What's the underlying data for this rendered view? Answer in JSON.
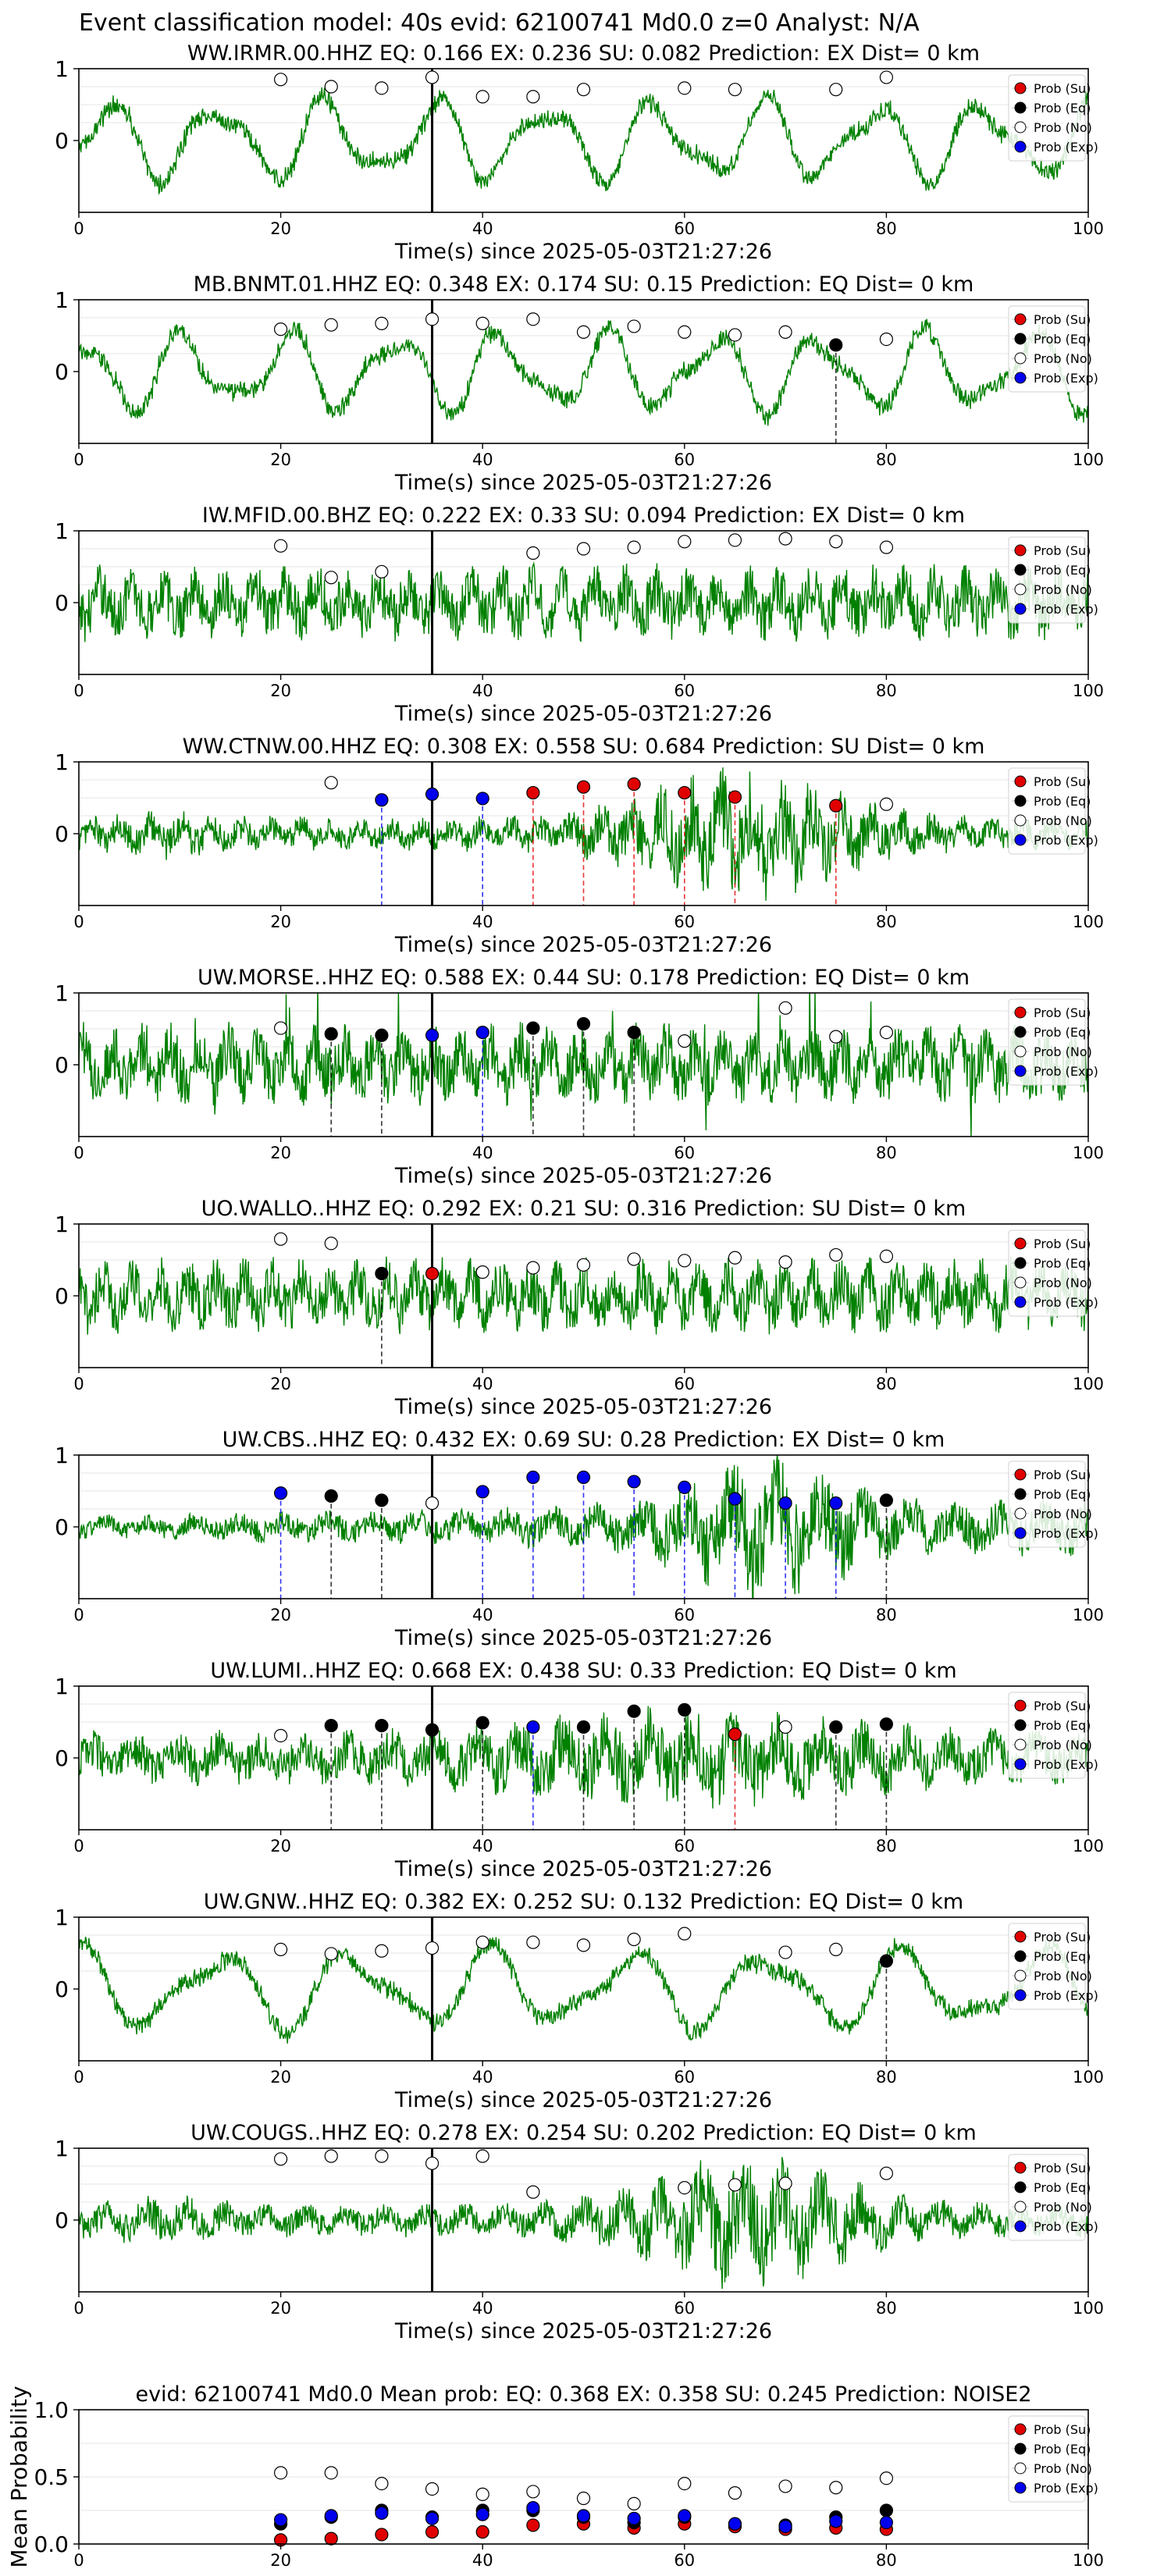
{
  "figure_title": "Event classification model: 40s evid: 62100741 Md0.0 z=0 Analyst: N/A",
  "colors": {
    "waveform": "#008000",
    "su": "#e00000",
    "eq": "#000000",
    "no": "#ffffff",
    "exp": "#0000ee",
    "pick": "#000000"
  },
  "legend": [
    "Prob (Su)",
    "Prob (Eq)",
    "Prob (No)",
    "Prob (Exp)"
  ],
  "chart_data": [
    {
      "type": "line",
      "title": "WW.IRMR.00.HHZ   EQ: 0.166  EX: 0.236  SU: 0.082   Prediction: EX    Dist= 0 km",
      "xlabel": "Time(s) since 2025-05-03T21:27:26",
      "xlim": [
        0,
        100
      ],
      "ylim": [
        -1,
        1
      ],
      "xticks": [
        0,
        20,
        40,
        60,
        80,
        100
      ],
      "yticks": [
        1,
        0
      ],
      "pick_time": 35,
      "waveform_style": "rs",
      "points": [
        {
          "t": 20,
          "p": 0.85,
          "c": "no"
        },
        {
          "t": 25,
          "p": 0.75,
          "c": "no"
        },
        {
          "t": 30,
          "p": 0.73,
          "c": "no"
        },
        {
          "t": 35,
          "p": 0.88,
          "c": "no"
        },
        {
          "t": 40,
          "p": 0.61,
          "c": "no"
        },
        {
          "t": 45,
          "p": 0.61,
          "c": "no"
        },
        {
          "t": 50,
          "p": 0.71,
          "c": "no"
        },
        {
          "t": 60,
          "p": 0.73,
          "c": "no"
        },
        {
          "t": 65,
          "p": 0.71,
          "c": "no"
        },
        {
          "t": 75,
          "p": 0.71,
          "c": "no"
        },
        {
          "t": 80,
          "p": 0.88,
          "c": "no"
        }
      ]
    },
    {
      "type": "line",
      "title": "MB.BNMT.01.HHZ   EQ: 0.348  EX: 0.174  SU: 0.15   Prediction: EQ    Dist= 0 km",
      "xlabel": "Time(s) since 2025-05-03T21:27:26",
      "xlim": [
        0,
        100
      ],
      "ylim": [
        -1,
        1
      ],
      "xticks": [
        0,
        20,
        40,
        60,
        80,
        100
      ],
      "yticks": [
        1,
        0
      ],
      "pick_time": 35,
      "waveform_style": "rs",
      "points": [
        {
          "t": 20,
          "p": 0.59,
          "c": "no"
        },
        {
          "t": 25,
          "p": 0.65,
          "c": "no"
        },
        {
          "t": 30,
          "p": 0.67,
          "c": "no"
        },
        {
          "t": 35,
          "p": 0.73,
          "c": "no"
        },
        {
          "t": 40,
          "p": 0.67,
          "c": "no"
        },
        {
          "t": 45,
          "p": 0.73,
          "c": "no"
        },
        {
          "t": 50,
          "p": 0.55,
          "c": "no"
        },
        {
          "t": 55,
          "p": 0.63,
          "c": "no"
        },
        {
          "t": 60,
          "p": 0.55,
          "c": "no"
        },
        {
          "t": 65,
          "p": 0.51,
          "c": "no"
        },
        {
          "t": 70,
          "p": 0.55,
          "c": "no"
        },
        {
          "t": 75,
          "p": 0.37,
          "c": "eq"
        },
        {
          "t": 80,
          "p": 0.45,
          "c": "no"
        }
      ]
    },
    {
      "type": "line",
      "title": "IW.MFID.00.BHZ   EQ: 0.222  EX: 0.33  SU: 0.094   Prediction: EX    Dist= 0 km",
      "xlabel": "Time(s) since 2025-05-03T21:27:26",
      "xlim": [
        0,
        100
      ],
      "ylim": [
        -1,
        1
      ],
      "xticks": [
        0,
        20,
        40,
        60,
        80,
        100
      ],
      "yticks": [
        1,
        0
      ],
      "pick_time": 35,
      "waveform_style": "bb",
      "points": [
        {
          "t": 20,
          "p": 0.79,
          "c": "no"
        },
        {
          "t": 25,
          "p": 0.35,
          "c": "no"
        },
        {
          "t": 30,
          "p": 0.43,
          "c": "no"
        },
        {
          "t": 45,
          "p": 0.69,
          "c": "no"
        },
        {
          "t": 50,
          "p": 0.75,
          "c": "no"
        },
        {
          "t": 55,
          "p": 0.77,
          "c": "no"
        },
        {
          "t": 60,
          "p": 0.85,
          "c": "no"
        },
        {
          "t": 65,
          "p": 0.87,
          "c": "no"
        },
        {
          "t": 70,
          "p": 0.89,
          "c": "no"
        },
        {
          "t": 75,
          "p": 0.85,
          "c": "no"
        },
        {
          "t": 80,
          "p": 0.77,
          "c": "no"
        }
      ]
    },
    {
      "type": "line",
      "title": "WW.CTNW.00.HHZ   EQ: 0.308  EX: 0.558  SU: 0.684   Prediction: SU    Dist= 0 km",
      "xlabel": "Time(s) since 2025-05-03T21:27:26",
      "xlim": [
        0,
        100
      ],
      "ylim": [
        -1,
        1
      ],
      "xticks": [
        0,
        20,
        40,
        60,
        80,
        100
      ],
      "yticks": [
        1,
        0
      ],
      "pick_time": 35,
      "waveform_style": "burst",
      "points": [
        {
          "t": 25,
          "p": 0.71,
          "c": "no"
        },
        {
          "t": 30,
          "p": 0.47,
          "c": "exp"
        },
        {
          "t": 35,
          "p": 0.55,
          "c": "exp"
        },
        {
          "t": 40,
          "p": 0.49,
          "c": "exp"
        },
        {
          "t": 45,
          "p": 0.57,
          "c": "su"
        },
        {
          "t": 50,
          "p": 0.65,
          "c": "su"
        },
        {
          "t": 55,
          "p": 0.69,
          "c": "su"
        },
        {
          "t": 60,
          "p": 0.57,
          "c": "su"
        },
        {
          "t": 65,
          "p": 0.51,
          "c": "su"
        },
        {
          "t": 75,
          "p": 0.39,
          "c": "su"
        },
        {
          "t": 80,
          "p": 0.41,
          "c": "no"
        }
      ]
    },
    {
      "type": "line",
      "title": "UW.MORSE..HHZ   EQ: 0.588  EX: 0.44  SU: 0.178   Prediction: EQ    Dist= 0 km",
      "xlabel": "Time(s) since 2025-05-03T21:27:26",
      "xlim": [
        0,
        100
      ],
      "ylim": [
        -1,
        1
      ],
      "xticks": [
        0,
        20,
        40,
        60,
        80,
        100
      ],
      "yticks": [
        1,
        0
      ],
      "pick_time": 35,
      "waveform_style": "spiky",
      "points": [
        {
          "t": 20,
          "p": 0.51,
          "c": "no"
        },
        {
          "t": 25,
          "p": 0.43,
          "c": "eq"
        },
        {
          "t": 30,
          "p": 0.41,
          "c": "eq"
        },
        {
          "t": 35,
          "p": 0.41,
          "c": "exp"
        },
        {
          "t": 40,
          "p": 0.45,
          "c": "exp"
        },
        {
          "t": 45,
          "p": 0.51,
          "c": "eq"
        },
        {
          "t": 50,
          "p": 0.57,
          "c": "eq"
        },
        {
          "t": 55,
          "p": 0.45,
          "c": "eq"
        },
        {
          "t": 60,
          "p": 0.33,
          "c": "no"
        },
        {
          "t": 70,
          "p": 0.79,
          "c": "no"
        },
        {
          "t": 75,
          "p": 0.39,
          "c": "no"
        },
        {
          "t": 80,
          "p": 0.45,
          "c": "no"
        }
      ]
    },
    {
      "type": "line",
      "title": "UO.WALLO..HHZ   EQ: 0.292  EX: 0.21  SU: 0.316   Prediction: SU    Dist= 0 km",
      "xlabel": "Time(s) since 2025-05-03T21:27:26",
      "xlim": [
        0,
        100
      ],
      "ylim": [
        -1,
        1
      ],
      "xticks": [
        0,
        20,
        40,
        60,
        80,
        100
      ],
      "yticks": [
        1,
        0
      ],
      "pick_time": 35,
      "waveform_style": "bb",
      "points": [
        {
          "t": 20,
          "p": 0.79,
          "c": "no"
        },
        {
          "t": 25,
          "p": 0.73,
          "c": "no"
        },
        {
          "t": 30,
          "p": 0.31,
          "c": "eq"
        },
        {
          "t": 35,
          "p": 0.31,
          "c": "su"
        },
        {
          "t": 40,
          "p": 0.33,
          "c": "no"
        },
        {
          "t": 45,
          "p": 0.39,
          "c": "no"
        },
        {
          "t": 50,
          "p": 0.43,
          "c": "no"
        },
        {
          "t": 55,
          "p": 0.51,
          "c": "no"
        },
        {
          "t": 60,
          "p": 0.49,
          "c": "no"
        },
        {
          "t": 65,
          "p": 0.53,
          "c": "no"
        },
        {
          "t": 70,
          "p": 0.47,
          "c": "no"
        },
        {
          "t": 75,
          "p": 0.57,
          "c": "no"
        },
        {
          "t": 80,
          "p": 0.55,
          "c": "no"
        }
      ]
    },
    {
      "type": "line",
      "title": "UW.CBS..HHZ   EQ: 0.432  EX: 0.69  SU: 0.28   Prediction: EX    Dist= 0 km",
      "xlabel": "Time(s) since 2025-05-03T21:27:26",
      "xlim": [
        0,
        100
      ],
      "ylim": [
        -1,
        1
      ],
      "xticks": [
        0,
        20,
        40,
        60,
        80,
        100
      ],
      "yticks": [
        1,
        0
      ],
      "pick_time": 35,
      "waveform_style": "quiet",
      "points": [
        {
          "t": 20,
          "p": 0.47,
          "c": "exp"
        },
        {
          "t": 25,
          "p": 0.43,
          "c": "eq"
        },
        {
          "t": 30,
          "p": 0.37,
          "c": "eq"
        },
        {
          "t": 35,
          "p": 0.33,
          "c": "no"
        },
        {
          "t": 40,
          "p": 0.49,
          "c": "exp"
        },
        {
          "t": 45,
          "p": 0.69,
          "c": "exp"
        },
        {
          "t": 50,
          "p": 0.69,
          "c": "exp"
        },
        {
          "t": 55,
          "p": 0.63,
          "c": "exp"
        },
        {
          "t": 60,
          "p": 0.55,
          "c": "exp"
        },
        {
          "t": 65,
          "p": 0.39,
          "c": "exp"
        },
        {
          "t": 70,
          "p": 0.33,
          "c": "exp"
        },
        {
          "t": 75,
          "p": 0.33,
          "c": "exp"
        },
        {
          "t": 80,
          "p": 0.37,
          "c": "eq"
        }
      ]
    },
    {
      "type": "line",
      "title": "UW.LUMI..HHZ   EQ: 0.668  EX: 0.438  SU: 0.33   Prediction: EQ    Dist= 0 km",
      "xlabel": "Time(s) since 2025-05-03T21:27:26",
      "xlim": [
        0,
        100
      ],
      "ylim": [
        -1,
        1
      ],
      "xticks": [
        0,
        20,
        40,
        60,
        80,
        100
      ],
      "yticks": [
        1,
        0
      ],
      "pick_time": 35,
      "waveform_style": "mixed",
      "points": [
        {
          "t": 20,
          "p": 0.31,
          "c": "no"
        },
        {
          "t": 25,
          "p": 0.45,
          "c": "eq"
        },
        {
          "t": 30,
          "p": 0.45,
          "c": "eq"
        },
        {
          "t": 35,
          "p": 0.39,
          "c": "eq"
        },
        {
          "t": 40,
          "p": 0.49,
          "c": "eq"
        },
        {
          "t": 45,
          "p": 0.43,
          "c": "exp"
        },
        {
          "t": 50,
          "p": 0.43,
          "c": "eq"
        },
        {
          "t": 55,
          "p": 0.65,
          "c": "eq"
        },
        {
          "t": 60,
          "p": 0.67,
          "c": "eq"
        },
        {
          "t": 65,
          "p": 0.33,
          "c": "su"
        },
        {
          "t": 70,
          "p": 0.43,
          "c": "no"
        },
        {
          "t": 75,
          "p": 0.43,
          "c": "eq"
        },
        {
          "t": 80,
          "p": 0.47,
          "c": "eq"
        }
      ]
    },
    {
      "type": "line",
      "title": "UW.GNW..HHZ   EQ: 0.382  EX: 0.252  SU: 0.132   Prediction: EQ    Dist= 0 km",
      "xlabel": "Time(s) since 2025-05-03T21:27:26",
      "xlim": [
        0,
        100
      ],
      "ylim": [
        -1,
        1
      ],
      "xticks": [
        0,
        20,
        40,
        60,
        80,
        100
      ],
      "yticks": [
        1,
        0
      ],
      "pick_time": 35,
      "waveform_style": "rs",
      "points": [
        {
          "t": 20,
          "p": 0.55,
          "c": "no"
        },
        {
          "t": 25,
          "p": 0.49,
          "c": "no"
        },
        {
          "t": 30,
          "p": 0.53,
          "c": "no"
        },
        {
          "t": 35,
          "p": 0.57,
          "c": "no"
        },
        {
          "t": 40,
          "p": 0.65,
          "c": "no"
        },
        {
          "t": 45,
          "p": 0.65,
          "c": "no"
        },
        {
          "t": 50,
          "p": 0.61,
          "c": "no"
        },
        {
          "t": 55,
          "p": 0.69,
          "c": "no"
        },
        {
          "t": 60,
          "p": 0.77,
          "c": "no"
        },
        {
          "t": 70,
          "p": 0.51,
          "c": "no"
        },
        {
          "t": 75,
          "p": 0.55,
          "c": "no"
        },
        {
          "t": 80,
          "p": 0.39,
          "c": "eq"
        }
      ]
    },
    {
      "type": "line",
      "title": "UW.COUGS..HHZ   EQ: 0.278  EX: 0.254  SU: 0.202   Prediction: EQ    Dist= 0 km",
      "xlabel": "Time(s) since 2025-05-03T21:27:26",
      "xlim": [
        0,
        100
      ],
      "ylim": [
        -1,
        1
      ],
      "xticks": [
        0,
        20,
        40,
        60,
        80,
        100
      ],
      "yticks": [
        1,
        0
      ],
      "pick_time": 35,
      "waveform_style": "burst",
      "points": [
        {
          "t": 20,
          "p": 0.85,
          "c": "no"
        },
        {
          "t": 25,
          "p": 0.89,
          "c": "no"
        },
        {
          "t": 30,
          "p": 0.89,
          "c": "no"
        },
        {
          "t": 35,
          "p": 0.79,
          "c": "no"
        },
        {
          "t": 40,
          "p": 0.89,
          "c": "no"
        },
        {
          "t": 45,
          "p": 0.39,
          "c": "no"
        },
        {
          "t": 60,
          "p": 0.45,
          "c": "no"
        },
        {
          "t": 65,
          "p": 0.49,
          "c": "no"
        },
        {
          "t": 70,
          "p": 0.51,
          "c": "no"
        },
        {
          "t": 80,
          "p": 0.65,
          "c": "no"
        }
      ]
    },
    {
      "type": "scatter",
      "title": "evid: 62100741  Md0.0   Mean prob:   EQ: 0.368  EX: 0.358  SU: 0.245   Prediction: NOISE2",
      "ylabel": "Mean Probability",
      "xlim": [
        0,
        100
      ],
      "ylim": [
        0,
        1
      ],
      "xticks": [
        0,
        20,
        40,
        60,
        80,
        100
      ],
      "yticks": [
        1.0,
        0.5,
        0.0
      ],
      "ytick_labels": [
        "1.0",
        "0.5",
        "0.0"
      ],
      "x": [
        20,
        25,
        30,
        35,
        40,
        45,
        50,
        55,
        60,
        65,
        70,
        75,
        80
      ],
      "series": [
        {
          "c": "su",
          "values": [
            0.03,
            0.04,
            0.07,
            0.09,
            0.09,
            0.14,
            0.15,
            0.12,
            0.15,
            0.13,
            0.11,
            0.12,
            0.11
          ]
        },
        {
          "c": "eq",
          "values": [
            0.15,
            0.2,
            0.25,
            0.2,
            0.25,
            0.25,
            0.2,
            0.16,
            0.2,
            0.15,
            0.14,
            0.2,
            0.25
          ]
        },
        {
          "c": "no",
          "values": [
            0.53,
            0.53,
            0.45,
            0.41,
            0.37,
            0.39,
            0.34,
            0.3,
            0.45,
            0.38,
            0.43,
            0.42,
            0.49
          ]
        },
        {
          "c": "exp",
          "values": [
            0.18,
            0.21,
            0.23,
            0.19,
            0.22,
            0.27,
            0.21,
            0.19,
            0.21,
            0.15,
            0.13,
            0.17,
            0.16
          ]
        }
      ]
    }
  ]
}
